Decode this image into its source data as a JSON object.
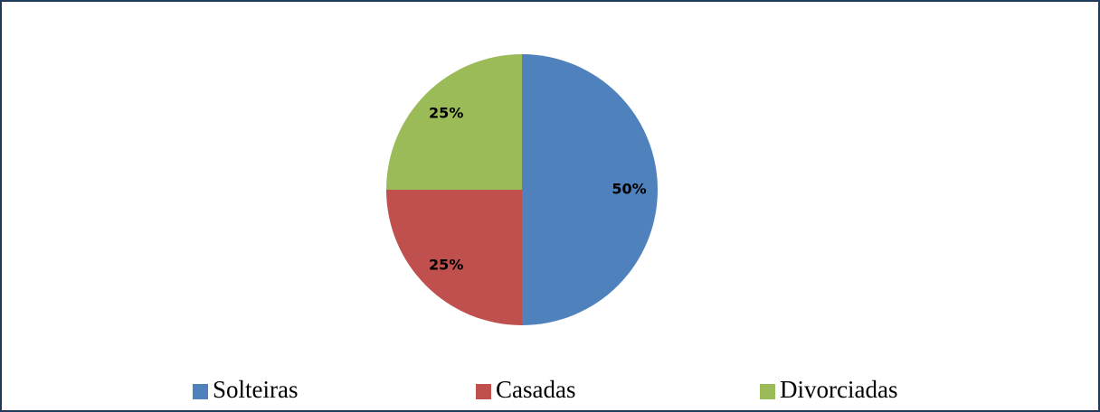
{
  "chart_data": {
    "type": "pie",
    "categories": [
      "Solteiras",
      "Casadas",
      "Divorciadas"
    ],
    "values": [
      50,
      25,
      25
    ],
    "value_labels": [
      "50%",
      "25%",
      "25%"
    ],
    "colors": [
      "#4f81bd",
      "#c0504d",
      "#9bbb59"
    ],
    "legend": "bottom"
  }
}
